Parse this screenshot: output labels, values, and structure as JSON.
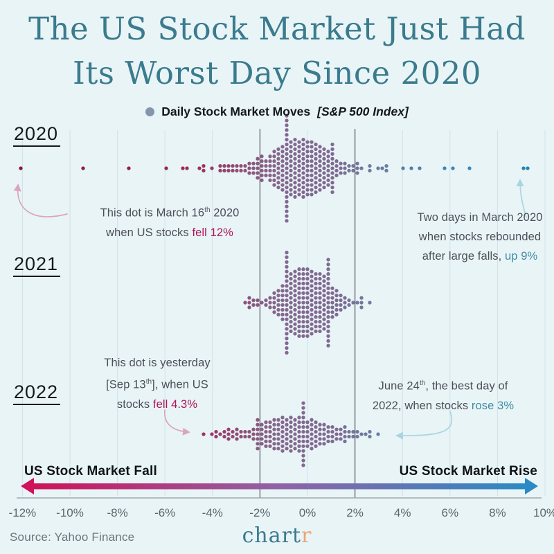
{
  "title": {
    "line1": "The US Stock Market Just Had",
    "line2": "Its Worst Day Since 2020"
  },
  "legend": {
    "label": "Daily Stock Market Moves",
    "sublabel": "[S&P 500 Index]"
  },
  "arrow_labels": {
    "fall": "US Stock Market Fall",
    "rise": "US Stock Market Rise"
  },
  "annotations": {
    "march16": {
      "line1_pre": "This dot is March 16",
      "line1_sup": "th",
      "line1_post": " 2020",
      "line2_pre": "when US stocks ",
      "line2_hl": "fell 12%"
    },
    "rebound": {
      "line1": "Two days in March 2020",
      "line2": "when stocks rebounded",
      "line3_pre": "after large falls, ",
      "line3_hl": "up 9%"
    },
    "sep13": {
      "line1": "This dot is yesterday",
      "line2_pre": "[Sep 13",
      "line2_sup": "th",
      "line2_post": "], when US",
      "line3_pre": "stocks ",
      "line3_hl": "fell 4.3%"
    },
    "june24": {
      "line1_pre": "June 24",
      "line1_sup": "th",
      "line1_post": ", the best day of",
      "line2_pre": "2022, when stocks ",
      "line2_hl": "rose 3%"
    }
  },
  "footer": {
    "source": "Source: Yahoo Finance",
    "logo_main": "chart",
    "logo_accent": "r"
  },
  "colors": {
    "background": "#e9f4f7",
    "title": "#3a7b8d",
    "year_text": "#15181c",
    "legend_text": "#15181c",
    "legend_dot": "#8496ae",
    "annotation_text": "#4b4f58",
    "fall_highlight": "#b01557",
    "rise_highlight": "#3e8ea3",
    "pink_arrow": "#dba4bf",
    "blue_arrow": "#a9d5de",
    "grid_line": "#d0e2e8",
    "ref_line": "#6a7076",
    "axis_line": "#9fa9b0",
    "tick_text": "#5c666d",
    "big_label_text": "#0f1316",
    "source_text": "#6b747b",
    "logo_main": "#3a7b8d",
    "logo_accent": "#e9a778",
    "gradient_left": "#cf1259",
    "gradient_mid": "#8f63a6",
    "gradient_right": "#2b8ac4"
  },
  "chart_data": {
    "type": "beeswarm",
    "title": "Daily Stock Market Moves [S&P 500 Index]",
    "unit": "% daily change",
    "x_domain": [
      -12,
      10
    ],
    "x_ticks": [
      -12,
      -10,
      -8,
      -6,
      -4,
      -2,
      0,
      2,
      4,
      6,
      8,
      10
    ],
    "tick_suffix": "%",
    "reference_lines_pct": [
      -2,
      2
    ],
    "color_scale_stops": [
      [
        -12,
        "#8e1538"
      ],
      [
        -8,
        "#97194a"
      ],
      [
        -5,
        "#a02a58"
      ],
      [
        -3.2,
        "#93466f"
      ],
      [
        -1.2,
        "#84698f"
      ],
      [
        1.2,
        "#7f6a92"
      ],
      [
        2.6,
        "#6d7da0"
      ],
      [
        4.6,
        "#4e80ac"
      ],
      [
        6.8,
        "#3688b8"
      ],
      [
        10,
        "#1d87ae"
      ]
    ],
    "series": [
      {
        "year": "2020",
        "bins": {
          "start": -2.55,
          "step": 0.16,
          "counts": [
            2,
            3,
            3,
            5,
            6,
            4,
            6,
            8,
            9,
            10,
            11,
            12,
            12,
            13,
            12,
            13,
            12,
            12,
            11,
            10,
            9,
            8,
            6,
            5,
            4,
            3,
            3,
            2,
            2,
            1
          ]
        },
        "scatter": [
          -12.0,
          -9.5,
          -7.6,
          -5.9,
          -5.3,
          -5.0,
          -4.5,
          -4.45,
          -4.4,
          -4.0,
          -3.7,
          -3.7,
          -3.5,
          -3.5,
          -3.3,
          -3.3,
          -3.1,
          -3.1,
          -2.9,
          -2.9,
          -2.75,
          -2.75,
          2.13,
          2.13,
          2.27,
          2.59,
          2.59,
          3.0,
          3.15,
          3.29,
          3.32,
          4.11,
          4.46,
          4.78,
          5.86,
          6.09,
          6.88,
          9.05,
          9.25
        ],
        "notable": [
          {
            "x": -12.0,
            "note": "March 16th 2020, fell 12%"
          },
          {
            "x": 9.05,
            "note": "March 2020 rebound, up 9%"
          },
          {
            "x": 9.25,
            "note": "March 2020 rebound, up 9%"
          }
        ]
      },
      {
        "year": "2021",
        "bins": {
          "start": -1.92,
          "step": 0.16,
          "counts": [
            1,
            2,
            3,
            5,
            6,
            8,
            10,
            12,
            13,
            14,
            15,
            15,
            15,
            14,
            13,
            13,
            12,
            10,
            9,
            7,
            6,
            4,
            3,
            2,
            1,
            1
          ]
        },
        "scatter": [
          -2.65,
          -2.5,
          -2.4,
          -2.4,
          -2.25,
          -2.25,
          -2.1,
          -2.1,
          2.2,
          2.2,
          2.35,
          2.55
        ],
        "notable": []
      },
      {
        "year": "2022",
        "bins": {
          "start": -2.5,
          "step": 0.16,
          "counts": [
            2,
            3,
            3,
            4,
            5,
            6,
            6,
            7,
            7,
            8,
            7,
            8,
            7,
            8,
            7,
            7,
            6,
            7,
            6,
            5,
            5,
            4,
            4,
            3,
            3,
            2,
            2,
            2
          ]
        },
        "scatter": [
          -4.35,
          -4.1,
          -3.9,
          -3.9,
          -3.65,
          -3.5,
          -3.5,
          -3.3,
          -3.3,
          -3.3,
          -3.1,
          -3.1,
          -2.95,
          -2.95,
          -2.95,
          -2.75,
          -2.75,
          -2.6,
          -2.6,
          1.95,
          1.95,
          2.1,
          2.1,
          2.25,
          2.4,
          2.55,
          2.7,
          3.0
        ],
        "notable": [
          {
            "x": -4.35,
            "note": "Sep 13th 2022, fell 4.3%"
          },
          {
            "x": 3.0,
            "note": "June 24th 2022, rose 3%"
          }
        ]
      }
    ]
  }
}
